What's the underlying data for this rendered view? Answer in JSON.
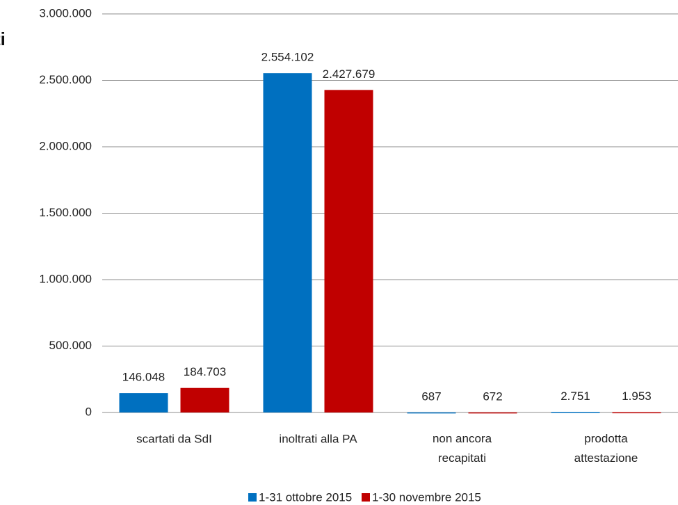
{
  "chart_data": {
    "type": "bar",
    "title": "ti",
    "categories": [
      "scartati da SdI",
      "inoltrati alla PA",
      "non ancora\nrecapitati",
      "prodotta\nattestazione"
    ],
    "series": [
      {
        "name": "1-31 ottobre 2015",
        "color": "#0070c0",
        "values": [
          146048,
          2554102,
          687,
          2751
        ],
        "value_labels": [
          "146.048",
          "2.554.102",
          "687",
          "2.751"
        ]
      },
      {
        "name": "1-30 novembre 2015",
        "color": "#c00000",
        "values": [
          184703,
          2427679,
          672,
          1953
        ],
        "value_labels": [
          "184.703",
          "2.427.679",
          "672",
          "1.953"
        ]
      }
    ],
    "ylim": [
      0,
      3000000
    ],
    "yticks": [
      0,
      {
        "value": 500000,
        "label": "500.000"
      },
      {
        "value": 1000000,
        "label": "1.000.000"
      },
      {
        "value": 1500000,
        "label": "1.500.000"
      },
      {
        "value": 2000000,
        "label": "2.000.000"
      },
      {
        "value": 2500000,
        "label": "2.500.000"
      },
      {
        "value": 3000000,
        "label": "3.000.000"
      }
    ],
    "grid": true,
    "legend": "bottom"
  }
}
